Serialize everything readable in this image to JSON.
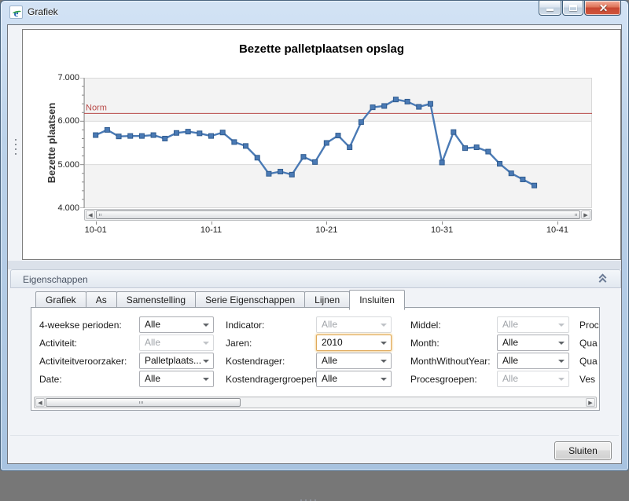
{
  "window": {
    "title": "Grafiek"
  },
  "icons": {
    "app": "e-logo",
    "minimize": "minimize-bar",
    "maximize": "maximize-square",
    "close": "cross",
    "collapse": "double-chevron-up",
    "dropdown": "triangle-down",
    "scroll_left": "triangle-left",
    "scroll_right": "triangle-right",
    "splitter": "grip-dots"
  },
  "chart_data": {
    "type": "line",
    "title": "Bezette palletplaatsen opslag",
    "ylabel": "Bezette plaatsen",
    "xlabel": "",
    "ylim": [
      4000,
      7000
    ],
    "xlim": [
      0,
      44
    ],
    "grid": true,
    "yticks": [
      {
        "value": 7000,
        "label": "7.000"
      },
      {
        "value": 6000,
        "label": "6.000"
      },
      {
        "value": 5000,
        "label": "5.000"
      },
      {
        "value": 4000,
        "label": "4.000"
      }
    ],
    "xticks": [
      {
        "value": 1,
        "label": "10-01"
      },
      {
        "value": 11,
        "label": "10-11"
      },
      {
        "value": 21,
        "label": "10-21"
      },
      {
        "value": 31,
        "label": "10-31"
      },
      {
        "value": 41,
        "label": "10-41"
      }
    ],
    "norm_line": {
      "label": "Norm",
      "value": 6180
    },
    "bands": [
      [
        4000,
        5000
      ],
      [
        6000,
        7000
      ]
    ],
    "series": [
      {
        "name": "Bezette palletplaatsen",
        "x_start_week": 1,
        "values": [
          5680,
          5800,
          5650,
          5660,
          5660,
          5680,
          5600,
          5730,
          5760,
          5720,
          5660,
          5740,
          5520,
          5430,
          5160,
          4790,
          4840,
          4770,
          5180,
          5060,
          5500,
          5670,
          5400,
          5980,
          6320,
          6350,
          6500,
          6450,
          6330,
          6400,
          5050,
          5750,
          5380,
          5400,
          5300,
          5020,
          4800,
          4660,
          4520
        ]
      }
    ],
    "colors": {
      "series": "#4a7ab5",
      "series_edge": "#2f5b8f",
      "norm": "#b94a48",
      "band": "#f3f3f3",
      "gridline": "#d9d9d9",
      "axis": "#8a8a8a"
    }
  },
  "properties_panel": {
    "header": {
      "title": "Eigenschappen"
    },
    "tabs": [
      {
        "label": "Grafiek",
        "active": false
      },
      {
        "label": "As",
        "active": false
      },
      {
        "label": "Samenstelling",
        "active": false
      },
      {
        "label": "Serie Eigenschappen",
        "active": false
      },
      {
        "label": "Lijnen",
        "active": false
      },
      {
        "label": "Insluiten",
        "active": true
      }
    ]
  },
  "filters": {
    "columns": [
      {
        "fields": [
          {
            "label": "4-weekse perioden:",
            "value": "Alle",
            "state": "enabled"
          },
          {
            "label": "Activiteit:",
            "value": "Alle",
            "state": "disabled"
          },
          {
            "label": "Activiteitveroorzaker:",
            "value": "Palletplaats...",
            "state": "enabled"
          },
          {
            "label": "Date:",
            "value": "Alle",
            "state": "enabled"
          }
        ]
      },
      {
        "fields": [
          {
            "label": "Indicator:",
            "value": "Alle",
            "state": "disabled"
          },
          {
            "label": "Jaren:",
            "value": "2010",
            "state": "focused"
          },
          {
            "label": "Kostendrager:",
            "value": "Alle",
            "state": "enabled"
          },
          {
            "label": "Kostendragergroepen:",
            "value": "Alle",
            "state": "enabled"
          }
        ]
      },
      {
        "fields": [
          {
            "label": "Middel:",
            "value": "Alle",
            "state": "disabled"
          },
          {
            "label": "Month:",
            "value": "Alle",
            "state": "enabled"
          },
          {
            "label": "MonthWithoutYear:",
            "value": "Alle",
            "state": "enabled"
          },
          {
            "label": "Procesgroepen:",
            "value": "Alle",
            "state": "disabled"
          }
        ]
      },
      {
        "fields": [
          {
            "label": "Proc",
            "state": "clipped"
          },
          {
            "label": "Qua",
            "state": "clipped"
          },
          {
            "label": "Qua",
            "state": "clipped"
          },
          {
            "label": "Ves",
            "state": "clipped"
          }
        ]
      }
    ]
  },
  "footer": {
    "close_button": "Sluiten"
  }
}
